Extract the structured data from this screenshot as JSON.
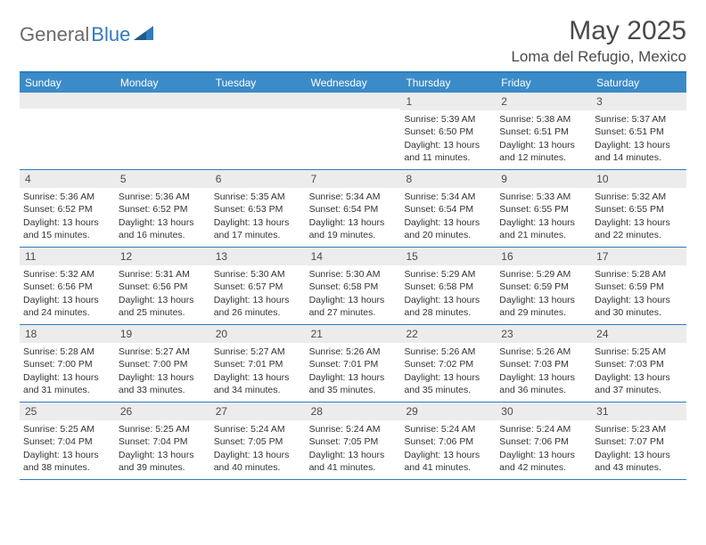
{
  "brand": {
    "part1": "General",
    "part2": "Blue"
  },
  "title": "May 2025",
  "location": "Loma del Refugio, Mexico",
  "colors": {
    "header_bg": "#3b8bc8",
    "border": "#2f7bbf",
    "daynum_bg": "#ececec",
    "text": "#333333",
    "title": "#4a4a4a"
  },
  "weekdays": [
    "Sunday",
    "Monday",
    "Tuesday",
    "Wednesday",
    "Thursday",
    "Friday",
    "Saturday"
  ],
  "weeks": [
    [
      {
        "n": "",
        "sr": "",
        "ss": "",
        "dl": ""
      },
      {
        "n": "",
        "sr": "",
        "ss": "",
        "dl": ""
      },
      {
        "n": "",
        "sr": "",
        "ss": "",
        "dl": ""
      },
      {
        "n": "",
        "sr": "",
        "ss": "",
        "dl": ""
      },
      {
        "n": "1",
        "sr": "Sunrise: 5:39 AM",
        "ss": "Sunset: 6:50 PM",
        "dl": "Daylight: 13 hours and 11 minutes."
      },
      {
        "n": "2",
        "sr": "Sunrise: 5:38 AM",
        "ss": "Sunset: 6:51 PM",
        "dl": "Daylight: 13 hours and 12 minutes."
      },
      {
        "n": "3",
        "sr": "Sunrise: 5:37 AM",
        "ss": "Sunset: 6:51 PM",
        "dl": "Daylight: 13 hours and 14 minutes."
      }
    ],
    [
      {
        "n": "4",
        "sr": "Sunrise: 5:36 AM",
        "ss": "Sunset: 6:52 PM",
        "dl": "Daylight: 13 hours and 15 minutes."
      },
      {
        "n": "5",
        "sr": "Sunrise: 5:36 AM",
        "ss": "Sunset: 6:52 PM",
        "dl": "Daylight: 13 hours and 16 minutes."
      },
      {
        "n": "6",
        "sr": "Sunrise: 5:35 AM",
        "ss": "Sunset: 6:53 PM",
        "dl": "Daylight: 13 hours and 17 minutes."
      },
      {
        "n": "7",
        "sr": "Sunrise: 5:34 AM",
        "ss": "Sunset: 6:54 PM",
        "dl": "Daylight: 13 hours and 19 minutes."
      },
      {
        "n": "8",
        "sr": "Sunrise: 5:34 AM",
        "ss": "Sunset: 6:54 PM",
        "dl": "Daylight: 13 hours and 20 minutes."
      },
      {
        "n": "9",
        "sr": "Sunrise: 5:33 AM",
        "ss": "Sunset: 6:55 PM",
        "dl": "Daylight: 13 hours and 21 minutes."
      },
      {
        "n": "10",
        "sr": "Sunrise: 5:32 AM",
        "ss": "Sunset: 6:55 PM",
        "dl": "Daylight: 13 hours and 22 minutes."
      }
    ],
    [
      {
        "n": "11",
        "sr": "Sunrise: 5:32 AM",
        "ss": "Sunset: 6:56 PM",
        "dl": "Daylight: 13 hours and 24 minutes."
      },
      {
        "n": "12",
        "sr": "Sunrise: 5:31 AM",
        "ss": "Sunset: 6:56 PM",
        "dl": "Daylight: 13 hours and 25 minutes."
      },
      {
        "n": "13",
        "sr": "Sunrise: 5:30 AM",
        "ss": "Sunset: 6:57 PM",
        "dl": "Daylight: 13 hours and 26 minutes."
      },
      {
        "n": "14",
        "sr": "Sunrise: 5:30 AM",
        "ss": "Sunset: 6:58 PM",
        "dl": "Daylight: 13 hours and 27 minutes."
      },
      {
        "n": "15",
        "sr": "Sunrise: 5:29 AM",
        "ss": "Sunset: 6:58 PM",
        "dl": "Daylight: 13 hours and 28 minutes."
      },
      {
        "n": "16",
        "sr": "Sunrise: 5:29 AM",
        "ss": "Sunset: 6:59 PM",
        "dl": "Daylight: 13 hours and 29 minutes."
      },
      {
        "n": "17",
        "sr": "Sunrise: 5:28 AM",
        "ss": "Sunset: 6:59 PM",
        "dl": "Daylight: 13 hours and 30 minutes."
      }
    ],
    [
      {
        "n": "18",
        "sr": "Sunrise: 5:28 AM",
        "ss": "Sunset: 7:00 PM",
        "dl": "Daylight: 13 hours and 31 minutes."
      },
      {
        "n": "19",
        "sr": "Sunrise: 5:27 AM",
        "ss": "Sunset: 7:00 PM",
        "dl": "Daylight: 13 hours and 33 minutes."
      },
      {
        "n": "20",
        "sr": "Sunrise: 5:27 AM",
        "ss": "Sunset: 7:01 PM",
        "dl": "Daylight: 13 hours and 34 minutes."
      },
      {
        "n": "21",
        "sr": "Sunrise: 5:26 AM",
        "ss": "Sunset: 7:01 PM",
        "dl": "Daylight: 13 hours and 35 minutes."
      },
      {
        "n": "22",
        "sr": "Sunrise: 5:26 AM",
        "ss": "Sunset: 7:02 PM",
        "dl": "Daylight: 13 hours and 35 minutes."
      },
      {
        "n": "23",
        "sr": "Sunrise: 5:26 AM",
        "ss": "Sunset: 7:03 PM",
        "dl": "Daylight: 13 hours and 36 minutes."
      },
      {
        "n": "24",
        "sr": "Sunrise: 5:25 AM",
        "ss": "Sunset: 7:03 PM",
        "dl": "Daylight: 13 hours and 37 minutes."
      }
    ],
    [
      {
        "n": "25",
        "sr": "Sunrise: 5:25 AM",
        "ss": "Sunset: 7:04 PM",
        "dl": "Daylight: 13 hours and 38 minutes."
      },
      {
        "n": "26",
        "sr": "Sunrise: 5:25 AM",
        "ss": "Sunset: 7:04 PM",
        "dl": "Daylight: 13 hours and 39 minutes."
      },
      {
        "n": "27",
        "sr": "Sunrise: 5:24 AM",
        "ss": "Sunset: 7:05 PM",
        "dl": "Daylight: 13 hours and 40 minutes."
      },
      {
        "n": "28",
        "sr": "Sunrise: 5:24 AM",
        "ss": "Sunset: 7:05 PM",
        "dl": "Daylight: 13 hours and 41 minutes."
      },
      {
        "n": "29",
        "sr": "Sunrise: 5:24 AM",
        "ss": "Sunset: 7:06 PM",
        "dl": "Daylight: 13 hours and 41 minutes."
      },
      {
        "n": "30",
        "sr": "Sunrise: 5:24 AM",
        "ss": "Sunset: 7:06 PM",
        "dl": "Daylight: 13 hours and 42 minutes."
      },
      {
        "n": "31",
        "sr": "Sunrise: 5:23 AM",
        "ss": "Sunset: 7:07 PM",
        "dl": "Daylight: 13 hours and 43 minutes."
      }
    ]
  ]
}
